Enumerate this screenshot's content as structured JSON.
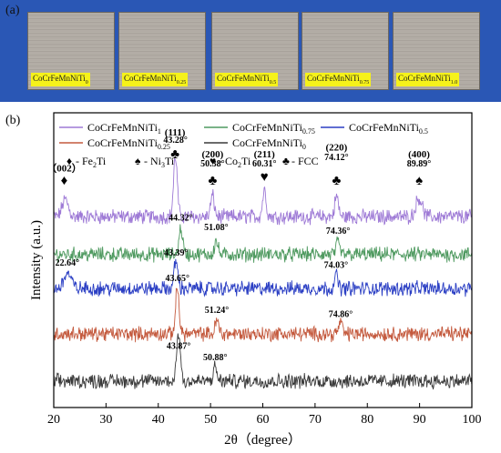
{
  "panel_a": {
    "label": "(a)",
    "samples": [
      {
        "base": "CoCrFeMnNiTi",
        "sub": "0"
      },
      {
        "base": "CoCrFeMnNiTi",
        "sub": "0.25"
      },
      {
        "base": "CoCrFeMnNiTi",
        "sub": "0.5"
      },
      {
        "base": "CoCrFeMnNiTi",
        "sub": "0.75"
      },
      {
        "base": "CoCrFeMnNiTi",
        "sub": "1.0"
      }
    ]
  },
  "chart_data": {
    "type": "line",
    "panel_label": "(b)",
    "xlabel": "2θ（degree）",
    "ylabel": "Intensity (a.u.)",
    "xlim": [
      20,
      100
    ],
    "x_ticks": [
      20,
      30,
      40,
      50,
      60,
      70,
      80,
      90,
      100
    ],
    "legend_placement": "top",
    "series": [
      {
        "name": "CoCrFeMnNiTi",
        "sub": "1",
        "color": "#9e7ad6",
        "baseline": 5.05,
        "peaks": [
          {
            "x": 22.2,
            "h": 0.45,
            "w": 0.6
          },
          {
            "x": 43.28,
            "h": 1.6,
            "w": 0.35
          },
          {
            "x": 50.38,
            "h": 0.55,
            "w": 0.35
          },
          {
            "x": 60.31,
            "h": 0.7,
            "w": 0.35
          },
          {
            "x": 74.12,
            "h": 0.55,
            "w": 0.35
          },
          {
            "x": 89.89,
            "h": 0.5,
            "w": 0.6
          }
        ]
      },
      {
        "name": "CoCrFeMnNiTi",
        "sub": "0.75",
        "color": "#4f9a60",
        "baseline": 4.05,
        "peaks": [
          {
            "x": 44.32,
            "h": 0.7,
            "w": 0.35
          },
          {
            "x": 51.08,
            "h": 0.35,
            "w": 0.35
          },
          {
            "x": 74.36,
            "h": 0.3,
            "w": 0.35
          }
        ]
      },
      {
        "name": "CoCrFeMnNiTi",
        "sub": "0.5",
        "color": "#2b3fc4",
        "baseline": 3.15,
        "peaks": [
          {
            "x": 22.64,
            "h": 0.4,
            "w": 0.7
          },
          {
            "x": 43.39,
            "h": 0.75,
            "w": 0.35
          },
          {
            "x": 74.03,
            "h": 0.35,
            "w": 0.35
          }
        ]
      },
      {
        "name": "CoCrFeMnNiTi",
        "sub": "0.25",
        "color": "#c45a3e",
        "baseline": 1.95,
        "peaks": [
          {
            "x": 43.65,
            "h": 1.2,
            "w": 0.35
          },
          {
            "x": 51.24,
            "h": 0.35,
            "w": 0.35
          },
          {
            "x": 74.86,
            "h": 0.3,
            "w": 0.35
          }
        ]
      },
      {
        "name": "CoCrFeMnNiTi",
        "sub": "0",
        "color": "#3a3a3a",
        "baseline": 0.7,
        "peaks": [
          {
            "x": 43.87,
            "h": 1.3,
            "w": 0.35
          },
          {
            "x": 50.88,
            "h": 0.35,
            "w": 0.35
          }
        ]
      }
    ],
    "phase_legend": [
      {
        "symbol": "♦",
        "base": " - Fe",
        "sub": "2",
        "after": "Ti"
      },
      {
        "symbol": "♠",
        "base": " - Ni",
        "sub": "3",
        "after": "Ti"
      },
      {
        "symbol": "♥",
        "base": " - Co",
        "sub": "2",
        "after": "Ti"
      },
      {
        "symbol": "♣",
        "base": " - FCC",
        "sub": "",
        "after": ""
      }
    ],
    "hkl_labels": [
      {
        "text": "（002）",
        "x": 22.0,
        "y": 6.25,
        "symbol": "♦",
        "sy": 5.9
      },
      {
        "text": "(111)",
        "x": 43.2,
        "y": 7.2,
        "symbol": "♣",
        "sy": 6.6
      },
      {
        "text": "(200)",
        "x": 50.4,
        "y": 6.62,
        "symbol": "♣",
        "sy": 5.9
      },
      {
        "text": "(211)",
        "x": 60.3,
        "y": 6.62,
        "symbol": "♥",
        "sy": 6.0
      },
      {
        "text": "(220)",
        "x": 74.1,
        "y": 6.8,
        "symbol": "♣",
        "sy": 5.9
      },
      {
        "text": "(400)",
        "x": 89.9,
        "y": 6.62,
        "symbol": "♠",
        "sy": 5.9
      }
    ],
    "annotations": [
      {
        "text": "43.28°",
        "x": 43.3,
        "y": 7.0
      },
      {
        "text": "50.38°",
        "x": 50.4,
        "y": 6.38
      },
      {
        "text": "60.31°",
        "x": 60.3,
        "y": 6.38
      },
      {
        "text": "74.12°",
        "x": 74.1,
        "y": 6.55
      },
      {
        "text": "89.89°",
        "x": 89.9,
        "y": 6.38
      },
      {
        "text": "44.32°",
        "x": 44.3,
        "y": 4.95
      },
      {
        "text": "51.08°",
        "x": 51.1,
        "y": 4.7
      },
      {
        "text": "74.36°",
        "x": 74.4,
        "y": 4.6
      },
      {
        "text": "22.64°",
        "x": 22.6,
        "y": 3.75
      },
      {
        "text": "43.39°",
        "x": 43.4,
        "y": 4.02
      },
      {
        "text": "74.03°",
        "x": 74.0,
        "y": 3.7
      },
      {
        "text": "43.65°",
        "x": 43.65,
        "y": 3.35
      },
      {
        "text": "51.24°",
        "x": 51.2,
        "y": 2.5
      },
      {
        "text": "74.86°",
        "x": 74.9,
        "y": 2.4
      },
      {
        "text": "43.87°",
        "x": 43.9,
        "y": 1.55
      },
      {
        "text": "50.88°",
        "x": 50.9,
        "y": 1.25
      }
    ]
  }
}
